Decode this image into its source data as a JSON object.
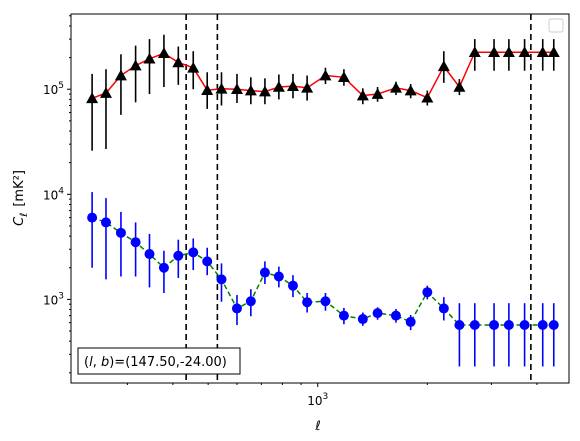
{
  "chart_data": {
    "type": "scatter",
    "title": "",
    "xlabel": "ℓ",
    "ylabel": "C",
    "ylabel_sub": "ℓ",
    "ylabel_units": "[mK²]",
    "x_scale": "log",
    "y_scale": "log",
    "xlim": [
      210,
      4900
    ],
    "ylim": [
      160,
      520000
    ],
    "x_ticks": [
      {
        "value": 1000,
        "base": "10",
        "exp": "3"
      }
    ],
    "y_ticks": [
      {
        "value": 1000,
        "base": "10",
        "exp": "3"
      },
      {
        "value": 10000,
        "base": "10",
        "exp": "4"
      },
      {
        "value": 100000,
        "base": "10",
        "exp": "5"
      }
    ],
    "vlines": [
      435,
      530,
      3850
    ],
    "legend": {
      "placement": "top-right",
      "entries": []
    },
    "annotation": "(l, b)=(147.50,-24.00)",
    "annotation_parts": {
      "open": "(",
      "l": "l",
      "comma": ", ",
      "b": "b",
      "rest": ")=(147.50,-24.00)"
    },
    "series": [
      {
        "marker": "triangle",
        "color": "#000000",
        "line_color": "#ff0000",
        "line_style": "solid",
        "x": [
          240,
          262,
          288,
          316,
          345,
          378,
          414,
          455,
          497,
          544,
          600,
          655,
          716,
          782,
          855,
          935,
          1050,
          1180,
          1330,
          1460,
          1640,
          1800,
          2000,
          2220,
          2450,
          2700,
          3050,
          3350,
          3700,
          4150,
          4450
        ],
        "y": [
          82000,
          92000,
          135000,
          168000,
          195000,
          220000,
          180000,
          160000,
          98000,
          101000,
          100000,
          97000,
          95000,
          105000,
          107000,
          103000,
          135000,
          130000,
          87000,
          90000,
          103000,
          97000,
          83000,
          165000,
          105000,
          225000,
          225000,
          225000,
          225000,
          225000,
          225000
        ],
        "y_low": [
          26000,
          27000,
          57000,
          75000,
          90000,
          105000,
          110000,
          100000,
          65000,
          70000,
          74000,
          72000,
          72000,
          80000,
          82000,
          78000,
          112000,
          108000,
          72000,
          76000,
          88000,
          82000,
          70000,
          115000,
          88000,
          150000,
          150000,
          150000,
          150000,
          150000,
          150000
        ],
        "y_high": [
          140000,
          155000,
          215000,
          260000,
          300000,
          330000,
          255000,
          230000,
          145000,
          145000,
          140000,
          130000,
          127000,
          138000,
          140000,
          135000,
          160000,
          155000,
          102000,
          105000,
          118000,
          112000,
          97000,
          230000,
          125000,
          300000,
          300000,
          300000,
          300000,
          300000,
          300000
        ]
      },
      {
        "marker": "circle",
        "color": "#0000ff",
        "line_color": "#008000",
        "line_style": "dashed",
        "x": [
          240,
          262,
          288,
          316,
          345,
          378,
          414,
          455,
          497,
          544,
          600,
          655,
          716,
          782,
          855,
          935,
          1050,
          1180,
          1330,
          1460,
          1640,
          1800,
          2000,
          2220,
          2450,
          2700,
          3050,
          3350,
          3700,
          4150,
          4450
        ],
        "y": [
          6000,
          5400,
          4300,
          3500,
          2700,
          2000,
          2600,
          2800,
          2300,
          1550,
          820,
          960,
          1800,
          1650,
          1350,
          940,
          960,
          700,
          650,
          740,
          700,
          610,
          1170,
          820,
          570,
          570,
          570,
          570,
          570,
          570,
          570
        ],
        "y_low": [
          2000,
          1550,
          1650,
          1650,
          1300,
          1150,
          1600,
          1900,
          1700,
          950,
          570,
          690,
          1400,
          1300,
          1050,
          750,
          780,
          580,
          560,
          640,
          600,
          510,
          1000,
          630,
          230,
          230,
          230,
          230,
          230,
          230,
          230
        ],
        "y_high": [
          10500,
          9200,
          6800,
          5400,
          4200,
          2900,
          3700,
          3800,
          3100,
          2200,
          1100,
          1250,
          2300,
          2050,
          1700,
          1150,
          1150,
          830,
          750,
          840,
          810,
          710,
          1350,
          1050,
          920,
          920,
          920,
          920,
          920,
          920,
          920
        ]
      }
    ]
  }
}
